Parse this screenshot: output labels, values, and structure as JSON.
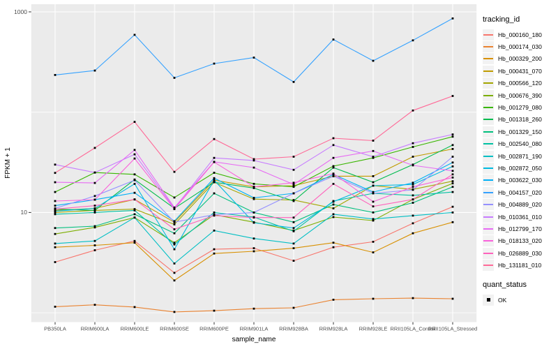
{
  "figure": {
    "background": "#FFFFFF",
    "panel_background": "#EBEBEB",
    "gridline_color": "#FFFFFF",
    "tick_color": "#333333",
    "axis_text_color": "#4D4D4D",
    "axis_title_color": "#000000",
    "point_color": "#000000",
    "legend_key_background": "#F2F2F2"
  },
  "chart_data": {
    "type": "line",
    "title": "",
    "xlabel": "sample_name",
    "ylabel": "FPKM + 1",
    "y_scale": "log10",
    "ylim": [
      0.8,
      1200
    ],
    "grid": "on",
    "legend_position": "right",
    "y_tick_labels": [
      {
        "label": "1000",
        "value": 1000
      },
      {
        "label": "10",
        "value": 10
      }
    ],
    "y_gridlines": [
      1000,
      100,
      10,
      1
    ],
    "categories": [
      "PB350LA",
      "RRIM600LA",
      "RRIM600LE",
      "RRIM600SE",
      "RRIM600PE",
      "RRIM901LA",
      "RRIM928BA",
      "RRIM928LA",
      "RRIM928LE",
      "RRII105LA_Control",
      "RRII105LA_Stressed"
    ],
    "series": [
      {
        "name": "Hb_000160_180",
        "color": "#F8766D",
        "values": [
          3.2,
          4.2,
          5.2,
          2.5,
          4.3,
          4.4,
          3.3,
          4.5,
          5.1,
          7.8,
          11.4
        ]
      },
      {
        "name": "Hb_000174_030",
        "color": "#EA8331",
        "values": [
          1.15,
          1.2,
          1.14,
          1.02,
          1.05,
          1.1,
          1.12,
          1.35,
          1.38,
          1.4,
          1.38
        ]
      },
      {
        "name": "Hb_000329_200",
        "color": "#D89000",
        "values": [
          4.5,
          4.7,
          5.0,
          2.1,
          3.9,
          4.1,
          4.4,
          5.0,
          4.0,
          6.2,
          8.0
        ]
      },
      {
        "name": "Hb_000431_070",
        "color": "#C09B00",
        "values": [
          10.5,
          11.0,
          13.5,
          8.0,
          21.0,
          18.0,
          18.5,
          23.0,
          23.0,
          36.0,
          43.0
        ]
      },
      {
        "name": "Hb_000566_120",
        "color": "#A3A500",
        "values": [
          10.0,
          10.5,
          10.8,
          7.6,
          20.0,
          13.6,
          13.3,
          11.0,
          18.5,
          17.0,
          20.5
        ]
      },
      {
        "name": "Hb_000676_390",
        "color": "#7CAE00",
        "values": [
          6.1,
          7.1,
          8.9,
          5.0,
          9.5,
          8.0,
          6.6,
          9.0,
          8.3,
          13.5,
          19.5
        ]
      },
      {
        "name": "Hb_001279_080",
        "color": "#39B600",
        "values": [
          16.0,
          25.0,
          24.0,
          14.1,
          24.9,
          19.3,
          18.0,
          29.0,
          35.0,
          45.0,
          57.0
        ]
      },
      {
        "name": "Hb_001318_260",
        "color": "#00BB4E",
        "values": [
          10.8,
          10.5,
          21.3,
          11.0,
          20.0,
          17.5,
          13.0,
          28.0,
          20.0,
          30.0,
          47.0
        ]
      },
      {
        "name": "Hb_001329_150",
        "color": "#00BF7D",
        "values": [
          7.0,
          7.3,
          9.6,
          6.2,
          15.5,
          10.0,
          8.0,
          12.0,
          10.0,
          12.5,
          18.0
        ]
      },
      {
        "name": "Hb_002540_080",
        "color": "#00C1A3",
        "values": [
          9.6,
          10.0,
          10.5,
          4.8,
          10.0,
          9.0,
          6.5,
          13.0,
          15.5,
          14.8,
          16.0
        ]
      },
      {
        "name": "Hb_002871_190",
        "color": "#00BFC4",
        "values": [
          4.9,
          5.2,
          8.9,
          3.1,
          6.6,
          5.5,
          4.9,
          9.6,
          8.6,
          9.3,
          10.0
        ]
      },
      {
        "name": "Hb_002872_050",
        "color": "#00BAE0",
        "values": [
          10.3,
          11.0,
          19.3,
          4.3,
          21.0,
          7.9,
          7.0,
          12.8,
          18.5,
          19.0,
          28.8
        ]
      },
      {
        "name": "Hb_003622_030",
        "color": "#00B0F6",
        "values": [
          11.7,
          13.4,
          15.7,
          8.2,
          22.0,
          14.0,
          15.5,
          24.0,
          16.0,
          19.8,
          31.5
        ]
      },
      {
        "name": "Hb_004157_020",
        "color": "#35A2FF",
        "values": [
          235,
          260,
          590,
          220,
          305,
          350,
          200,
          530,
          325,
          520,
          860
        ]
      },
      {
        "name": "Hb_004889_020",
        "color": "#9590FF",
        "values": [
          11.0,
          14.6,
          21.0,
          8.0,
          9.5,
          10.0,
          15.5,
          23.0,
          15.5,
          16.8,
          36.0
        ]
      },
      {
        "name": "Hb_010361_010",
        "color": "#C77CFF",
        "values": [
          30.0,
          25.0,
          38.0,
          11.0,
          35.0,
          33.0,
          26.6,
          47.0,
          36.0,
          49.0,
          60.0
        ]
      },
      {
        "name": "Hb_012799_170",
        "color": "#E76BF3",
        "values": [
          20.0,
          19.7,
          42.0,
          11.2,
          32.0,
          28.0,
          19.0,
          35.0,
          41.0,
          29.5,
          26.0
        ]
      },
      {
        "name": "Hb_018133_020",
        "color": "#FA62DB",
        "values": [
          13.0,
          13.4,
          34.5,
          10.8,
          31.8,
          18.0,
          19.8,
          24.4,
          12.8,
          18.0,
          22.3
        ]
      },
      {
        "name": "Hb_026889_030",
        "color": "#FF62BC",
        "values": [
          10.8,
          11.7,
          13.5,
          6.8,
          9.3,
          8.9,
          8.9,
          19.3,
          11.5,
          13.5,
          24.0
        ]
      },
      {
        "name": "Hb_131181_010",
        "color": "#FF6A98",
        "values": [
          24.8,
          44.0,
          80.0,
          25.4,
          54.0,
          34.0,
          36.0,
          55.0,
          52.0,
          104.0,
          145.0
        ]
      }
    ]
  },
  "legend": {
    "tracking_title": "tracking_id",
    "quant_title": "quant_status",
    "quant_items": [
      "OK"
    ]
  }
}
